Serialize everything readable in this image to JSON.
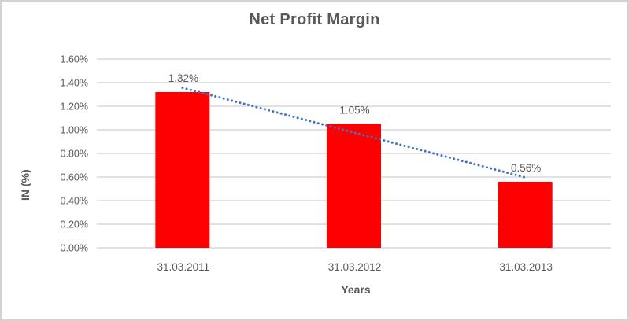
{
  "chart_data": {
    "type": "bar",
    "title": "Net Profit Margin",
    "xlabel": "Years",
    "ylabel": "IN (%)",
    "categories": [
      "31.03.2011",
      "31.03.2012",
      "31.03.2013"
    ],
    "values": [
      1.32,
      1.05,
      0.56
    ],
    "data_labels": [
      "1.32%",
      "1.05%",
      "0.56%"
    ],
    "ylim": [
      0,
      1.6
    ],
    "ytick_step": 0.2,
    "ytick_labels": [
      "0.00%",
      "0.20%",
      "0.40%",
      "0.60%",
      "0.80%",
      "1.00%",
      "1.20%",
      "1.40%",
      "1.60%"
    ],
    "grid": true,
    "legend": false,
    "trendline": {
      "type": "linear",
      "style": "dotted"
    },
    "colors": {
      "bar": "#FF0000",
      "trendline": "#4472C4",
      "gridline": "#D9D9D9",
      "axis_line": "#D9D9D9",
      "text": "#595959",
      "title_text": "#595959",
      "frame_border": "#D3D3D3",
      "background": "#FFFFFF"
    }
  }
}
